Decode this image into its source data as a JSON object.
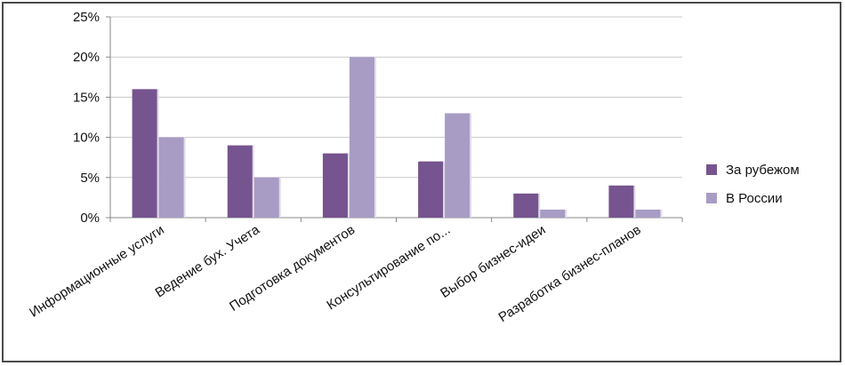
{
  "chart_data": {
    "type": "bar",
    "categories": [
      "Информационные услуги",
      "Ведение бух. Учета",
      "Подготовка документов",
      "Консультирование по...",
      "Выбор бизнес-идеи",
      "Разработка бизнес-планов"
    ],
    "series": [
      {
        "name": "За рубежом",
        "values": [
          16,
          9,
          8,
          7,
          3,
          4
        ],
        "color": "#76548f"
      },
      {
        "name": "В России",
        "values": [
          10,
          5,
          20,
          13,
          1,
          1
        ],
        "color": "#a89cc4"
      }
    ],
    "ylim": [
      0,
      25
    ],
    "yticks": [
      "0%",
      "5%",
      "10%",
      "15%",
      "20%",
      "25%"
    ],
    "ytick_values": [
      0,
      5,
      10,
      15,
      20,
      25
    ],
    "grid": true,
    "legend_position": "right"
  }
}
